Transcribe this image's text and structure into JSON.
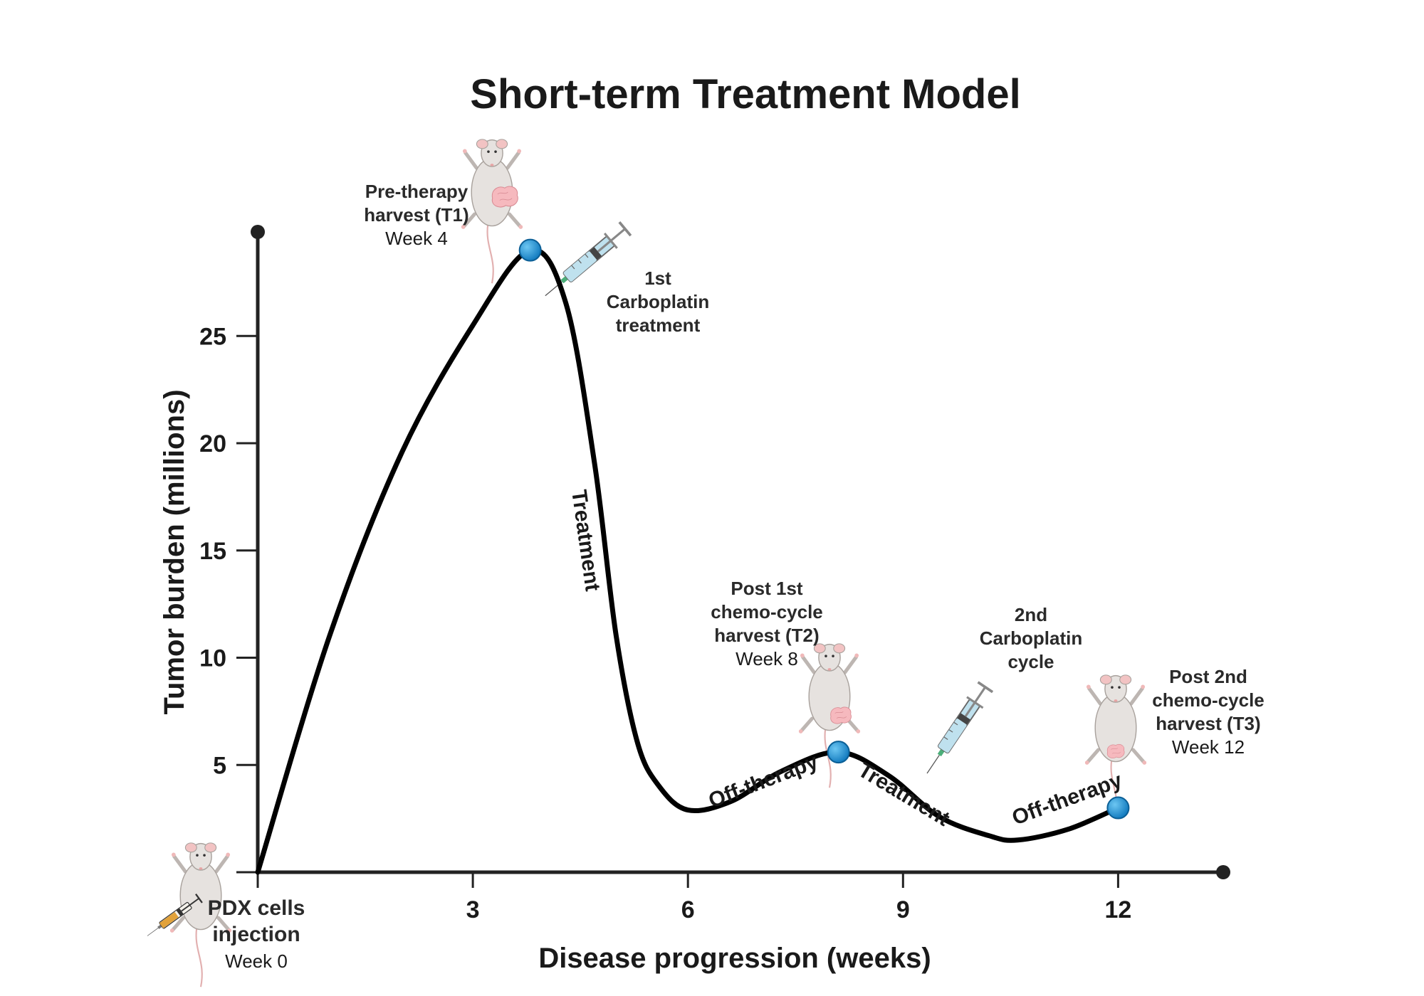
{
  "chart_data": {
    "type": "line",
    "title": "Short-term Treatment Model",
    "xlabel": "Disease progression (weeks)",
    "ylabel": "Tumor burden (millions)",
    "xlim": [
      0,
      13.5
    ],
    "ylim": [
      0,
      29.5
    ],
    "x_ticks": [
      "3",
      "6",
      "9",
      "12"
    ],
    "y_ticks": [
      "5",
      "10",
      "15",
      "20",
      "25"
    ],
    "x_tick_values": [
      3,
      6,
      9,
      12
    ],
    "y_tick_values": [
      5,
      10,
      15,
      20,
      25
    ],
    "x": [
      0,
      1,
      2,
      3,
      3.8,
      4.3,
      4.7,
      5,
      5.3,
      5.6,
      6,
      6.6,
      7.3,
      8.1,
      8.8,
      9.5,
      10.2,
      10.6,
      11.3,
      12
    ],
    "y": [
      0,
      11,
      19.5,
      25.5,
      29,
      26.5,
      19,
      11,
      6,
      4,
      2.9,
      3.3,
      4.7,
      5.6,
      4.5,
      2.6,
      1.7,
      1.5,
      2,
      3
    ],
    "harvest_points": [
      {
        "x": 3.8,
        "y": 29
      },
      {
        "x": 8.1,
        "y": 5.6
      },
      {
        "x": 12,
        "y": 3
      }
    ],
    "phase_labels": [
      "Treatment",
      "Off-therapy",
      "Treatment",
      "Off-therapy"
    ],
    "annotations": {
      "t1": {
        "bold": [
          "Pre-therapy",
          "harvest (T1)"
        ],
        "normal": "Week 4"
      },
      "carbo1": {
        "bold": [
          "1st",
          "Carboplatin",
          "treatment"
        ]
      },
      "t2": {
        "bold": [
          "Post 1st",
          "chemo-cycle",
          "harvest (T2)"
        ],
        "normal": "Week 8"
      },
      "carbo2": {
        "bold": [
          "2nd",
          "Carboplatin",
          "cycle"
        ]
      },
      "t3": {
        "bold": [
          "Post 2nd",
          "chemo-cycle",
          "harvest (T3)"
        ],
        "normal": "Week 12"
      },
      "injection": {
        "bold": [
          "PDX cells",
          "injection"
        ],
        "normal": "Week 0"
      }
    },
    "colors": {
      "line": "#000000",
      "marker": "#1a8fd6",
      "mouse_body": "#e6e2df",
      "tumor": "#f6b9be",
      "syringe_fluid": "#bfe1ee",
      "injection_fluid": "#e2a23a"
    },
    "icons": [
      "mouse-icon",
      "syringe-icon"
    ]
  }
}
